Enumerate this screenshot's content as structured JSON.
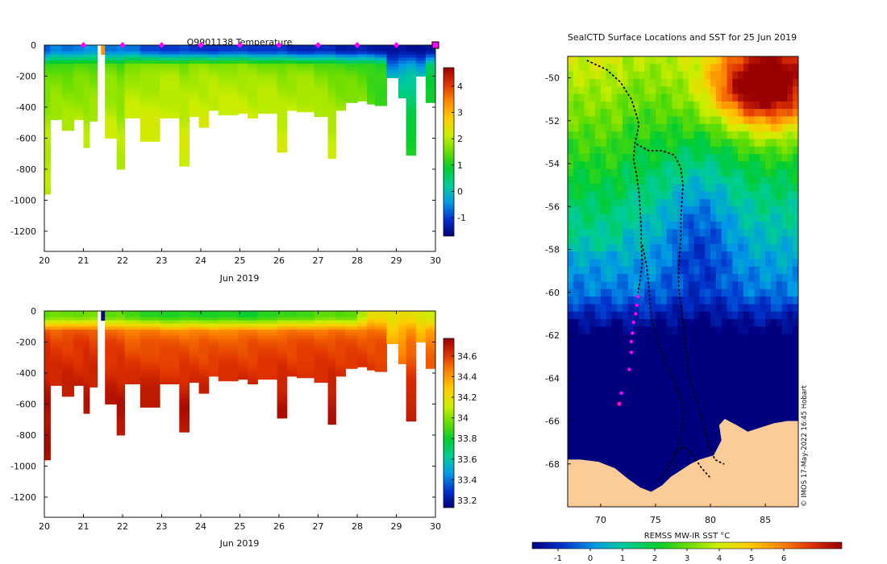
{
  "colors": {
    "land": "#fbcb98",
    "ocean_cold": "#00007f",
    "track": "#000000",
    "profile_marker": "#ff00ff",
    "temp_cmap": [
      "#00007f",
      "#0033cc",
      "#0099e6",
      "#00cc99",
      "#00cc33",
      "#66dd00",
      "#ccee00",
      "#ffcc00",
      "#ff8800",
      "#e03300",
      "#990000"
    ],
    "sal_cmap": [
      "#00007f",
      "#0033cc",
      "#0099e6",
      "#00cc99",
      "#00cc33",
      "#66dd00",
      "#ccee00",
      "#ffcc00",
      "#ff8800",
      "#e03300",
      "#990000"
    ],
    "sst_cmap": [
      "#00007f",
      "#0033cc",
      "#0099e6",
      "#00cc99",
      "#00cc33",
      "#66dd00",
      "#ccee00",
      "#ffcc00",
      "#ff8800",
      "#e03300",
      "#990000"
    ]
  },
  "chart_data": [
    {
      "type": "heatmap",
      "title": "Q9901138  Temperature",
      "xlabel": "Jun 2019",
      "ylabel": "",
      "xlim": [
        20,
        30
      ],
      "ylim": [
        -1330,
        0
      ],
      "xticks": [
        20,
        21,
        22,
        23,
        24,
        25,
        26,
        27,
        28,
        29,
        30
      ],
      "yticks": [
        0,
        -200,
        -400,
        -600,
        -800,
        -1000,
        -1200
      ],
      "colorbar": {
        "range": [
          -1.7,
          4.7
        ],
        "ticks": [
          -1,
          0,
          1,
          2,
          3,
          4
        ]
      },
      "profile_markers_x": [
        21,
        22,
        23,
        24,
        25,
        26,
        27,
        28,
        29,
        30
      ],
      "profiles": [
        {
          "x0": 20.0,
          "x1": 20.15,
          "depth": -960,
          "top": -0.8,
          "mix": 1.2,
          "deep": 2.0
        },
        {
          "x0": 20.15,
          "x1": 20.45,
          "depth": -480,
          "top": -0.6,
          "mix": 1.3,
          "deep": 2.1
        },
        {
          "x0": 20.45,
          "x1": 20.75,
          "depth": -550,
          "top": -0.7,
          "mix": 1.2,
          "deep": 2.1
        },
        {
          "x0": 20.75,
          "x1": 21.0,
          "depth": -480,
          "top": -0.5,
          "mix": 1.3,
          "deep": 2.1
        },
        {
          "x0": 21.0,
          "x1": 21.15,
          "depth": -660,
          "top": -0.4,
          "mix": 1.4,
          "deep": 2.0
        },
        {
          "x0": 21.15,
          "x1": 21.35,
          "depth": -490,
          "top": -0.5,
          "mix": 1.3,
          "deep": 2.1
        },
        {
          "x0": 21.45,
          "x1": 21.55,
          "depth": -60,
          "top": 3.3,
          "mix": 3.3,
          "deep": 3.3
        },
        {
          "x0": 21.55,
          "x1": 21.85,
          "depth": -600,
          "top": -0.6,
          "mix": 1.4,
          "deep": 2.2
        },
        {
          "x0": 21.85,
          "x1": 22.05,
          "depth": -800,
          "top": -0.6,
          "mix": 1.3,
          "deep": 2.0
        },
        {
          "x0": 22.05,
          "x1": 22.45,
          "depth": -470,
          "top": -0.7,
          "mix": 1.6,
          "deep": 2.3
        },
        {
          "x0": 22.45,
          "x1": 22.95,
          "depth": -620,
          "top": -0.9,
          "mix": 1.6,
          "deep": 2.3
        },
        {
          "x0": 22.95,
          "x1": 23.45,
          "depth": -470,
          "top": -1.0,
          "mix": 1.7,
          "deep": 2.3
        },
        {
          "x0": 23.45,
          "x1": 23.7,
          "depth": -780,
          "top": -1.0,
          "mix": 1.6,
          "deep": 2.2
        },
        {
          "x0": 23.7,
          "x1": 23.95,
          "depth": -460,
          "top": -1.1,
          "mix": 1.7,
          "deep": 2.3
        },
        {
          "x0": 23.95,
          "x1": 24.2,
          "depth": -530,
          "top": -1.0,
          "mix": 1.7,
          "deep": 2.3
        },
        {
          "x0": 24.2,
          "x1": 24.45,
          "depth": -420,
          "top": -1.1,
          "mix": 1.7,
          "deep": 2.3
        },
        {
          "x0": 24.45,
          "x1": 24.95,
          "depth": -450,
          "top": -1.1,
          "mix": 1.7,
          "deep": 2.3
        },
        {
          "x0": 24.95,
          "x1": 25.2,
          "depth": -440,
          "top": -1.0,
          "mix": 1.7,
          "deep": 2.3
        },
        {
          "x0": 25.2,
          "x1": 25.45,
          "depth": -470,
          "top": -1.0,
          "mix": 1.6,
          "deep": 2.3
        },
        {
          "x0": 25.45,
          "x1": 25.95,
          "depth": -440,
          "top": -1.1,
          "mix": 1.6,
          "deep": 2.3
        },
        {
          "x0": 25.95,
          "x1": 26.2,
          "depth": -690,
          "top": -1.1,
          "mix": 1.5,
          "deep": 2.2
        },
        {
          "x0": 26.2,
          "x1": 26.45,
          "depth": -420,
          "top": -1.2,
          "mix": 1.5,
          "deep": 2.3
        },
        {
          "x0": 26.45,
          "x1": 26.9,
          "depth": -430,
          "top": -1.2,
          "mix": 1.5,
          "deep": 2.3
        },
        {
          "x0": 26.9,
          "x1": 27.25,
          "depth": -460,
          "top": -1.2,
          "mix": 1.4,
          "deep": 2.2
        },
        {
          "x0": 27.25,
          "x1": 27.45,
          "depth": -730,
          "top": -1.2,
          "mix": 1.3,
          "deep": 2.1
        },
        {
          "x0": 27.45,
          "x1": 27.7,
          "depth": -420,
          "top": -1.3,
          "mix": 1.2,
          "deep": 2.1
        },
        {
          "x0": 27.7,
          "x1": 28.0,
          "depth": -370,
          "top": -1.3,
          "mix": 1.2,
          "deep": 2.0
        },
        {
          "x0": 28.0,
          "x1": 28.25,
          "depth": -360,
          "top": -1.3,
          "mix": 1.2,
          "deep": 1.9
        },
        {
          "x0": 28.25,
          "x1": 28.45,
          "depth": -380,
          "top": -1.4,
          "mix": 1.1,
          "deep": 1.5
        },
        {
          "x0": 28.45,
          "x1": 28.75,
          "depth": -390,
          "top": -1.4,
          "mix": 1.0,
          "deep": 1.4
        },
        {
          "x0": 28.75,
          "x1": 29.05,
          "depth": -210,
          "top": -1.5,
          "mix": -0.6,
          "deep": 0.9
        },
        {
          "x0": 29.05,
          "x1": 29.25,
          "depth": -340,
          "top": -1.5,
          "mix": -0.4,
          "deep": 1.0
        },
        {
          "x0": 29.25,
          "x1": 29.5,
          "depth": -710,
          "top": -1.5,
          "mix": -0.3,
          "deep": 1.0
        },
        {
          "x0": 29.5,
          "x1": 29.75,
          "depth": -200,
          "top": -1.5,
          "mix": -0.5,
          "deep": 0.8
        },
        {
          "x0": 29.75,
          "x1": 30.05,
          "depth": -370,
          "top": -1.5,
          "mix": 0.6,
          "deep": 1.1
        }
      ]
    },
    {
      "type": "heatmap",
      "title": "",
      "xlabel": "Jun 2019",
      "ylabel": "",
      "xlim": [
        20,
        30
      ],
      "ylim": [
        -1330,
        0
      ],
      "xticks": [
        20,
        21,
        22,
        23,
        24,
        25,
        26,
        27,
        28,
        29,
        30
      ],
      "yticks": [
        0,
        -200,
        -400,
        -600,
        -800,
        -1000,
        -1200
      ],
      "colorbar": {
        "range": [
          33.13,
          34.77
        ],
        "ticks": [
          33.2,
          33.4,
          33.6,
          33.8,
          34,
          34.2,
          34.4,
          34.6
        ]
      },
      "profiles": [
        {
          "x0": 20.0,
          "x1": 20.15,
          "depth": -960,
          "top": 33.95,
          "mix": 34.55,
          "deep": 34.72
        },
        {
          "x0": 20.15,
          "x1": 20.45,
          "depth": -480,
          "top": 33.95,
          "mix": 34.52,
          "deep": 34.7
        },
        {
          "x0": 20.45,
          "x1": 20.75,
          "depth": -550,
          "top": 33.95,
          "mix": 34.52,
          "deep": 34.71
        },
        {
          "x0": 20.75,
          "x1": 21.0,
          "depth": -480,
          "top": 33.96,
          "mix": 34.53,
          "deep": 34.7
        },
        {
          "x0": 21.0,
          "x1": 21.15,
          "depth": -660,
          "top": 33.97,
          "mix": 34.55,
          "deep": 34.71
        },
        {
          "x0": 21.15,
          "x1": 21.35,
          "depth": -490,
          "top": 33.96,
          "mix": 34.53,
          "deep": 34.7
        },
        {
          "x0": 21.45,
          "x1": 21.55,
          "depth": -60,
          "top": 33.15,
          "mix": 33.15,
          "deep": 33.15
        },
        {
          "x0": 21.55,
          "x1": 21.85,
          "depth": -600,
          "top": 33.95,
          "mix": 34.5,
          "deep": 34.71
        },
        {
          "x0": 21.85,
          "x1": 22.05,
          "depth": -800,
          "top": 33.95,
          "mix": 34.5,
          "deep": 34.71
        },
        {
          "x0": 22.05,
          "x1": 22.45,
          "depth": -470,
          "top": 33.88,
          "mix": 34.45,
          "deep": 34.7
        },
        {
          "x0": 22.45,
          "x1": 22.95,
          "depth": -620,
          "top": 33.86,
          "mix": 34.45,
          "deep": 34.71
        },
        {
          "x0": 22.95,
          "x1": 23.45,
          "depth": -470,
          "top": 33.84,
          "mix": 34.44,
          "deep": 34.7
        },
        {
          "x0": 23.45,
          "x1": 23.7,
          "depth": -780,
          "top": 33.84,
          "mix": 34.44,
          "deep": 34.71
        },
        {
          "x0": 23.7,
          "x1": 23.95,
          "depth": -460,
          "top": 33.83,
          "mix": 34.44,
          "deep": 34.7
        },
        {
          "x0": 23.95,
          "x1": 24.2,
          "depth": -530,
          "top": 33.84,
          "mix": 34.44,
          "deep": 34.7
        },
        {
          "x0": 24.2,
          "x1": 24.45,
          "depth": -420,
          "top": 33.83,
          "mix": 34.44,
          "deep": 34.7
        },
        {
          "x0": 24.45,
          "x1": 24.95,
          "depth": -450,
          "top": 33.82,
          "mix": 34.45,
          "deep": 34.7
        },
        {
          "x0": 24.95,
          "x1": 25.2,
          "depth": -440,
          "top": 33.8,
          "mix": 34.45,
          "deep": 34.7
        },
        {
          "x0": 25.2,
          "x1": 25.45,
          "depth": -470,
          "top": 33.82,
          "mix": 34.46,
          "deep": 34.7
        },
        {
          "x0": 25.45,
          "x1": 25.95,
          "depth": -440,
          "top": 33.84,
          "mix": 34.46,
          "deep": 34.7
        },
        {
          "x0": 25.95,
          "x1": 26.2,
          "depth": -690,
          "top": 33.86,
          "mix": 34.47,
          "deep": 34.71
        },
        {
          "x0": 26.2,
          "x1": 26.45,
          "depth": -420,
          "top": 33.88,
          "mix": 34.47,
          "deep": 34.7
        },
        {
          "x0": 26.45,
          "x1": 26.9,
          "depth": -430,
          "top": 33.9,
          "mix": 34.48,
          "deep": 34.7
        },
        {
          "x0": 26.9,
          "x1": 27.25,
          "depth": -460,
          "top": 33.92,
          "mix": 34.48,
          "deep": 34.7
        },
        {
          "x0": 27.25,
          "x1": 27.45,
          "depth": -730,
          "top": 33.93,
          "mix": 34.48,
          "deep": 34.71
        },
        {
          "x0": 27.45,
          "x1": 27.7,
          "depth": -420,
          "top": 33.93,
          "mix": 34.48,
          "deep": 34.7
        },
        {
          "x0": 27.7,
          "x1": 28.0,
          "depth": -370,
          "top": 33.94,
          "mix": 34.48,
          "deep": 34.69
        },
        {
          "x0": 28.0,
          "x1": 28.25,
          "depth": -360,
          "top": 34.05,
          "mix": 34.48,
          "deep": 34.69
        },
        {
          "x0": 28.25,
          "x1": 28.45,
          "depth": -380,
          "top": 34.2,
          "mix": 34.48,
          "deep": 34.68
        },
        {
          "x0": 28.45,
          "x1": 28.75,
          "depth": -390,
          "top": 34.22,
          "mix": 34.47,
          "deep": 34.68
        },
        {
          "x0": 28.75,
          "x1": 29.05,
          "depth": -210,
          "top": 34.18,
          "mix": 34.3,
          "deep": 34.45
        },
        {
          "x0": 29.05,
          "x1": 29.25,
          "depth": -340,
          "top": 34.2,
          "mix": 34.35,
          "deep": 34.55
        },
        {
          "x0": 29.25,
          "x1": 29.5,
          "depth": -710,
          "top": 34.2,
          "mix": 34.4,
          "deep": 34.68
        },
        {
          "x0": 29.5,
          "x1": 29.75,
          "depth": -200,
          "top": 34.18,
          "mix": 34.3,
          "deep": 34.45
        },
        {
          "x0": 29.75,
          "x1": 30.05,
          "depth": -370,
          "top": 34.1,
          "mix": 34.4,
          "deep": 34.6
        }
      ]
    },
    {
      "type": "heatmap",
      "title": "SealCTD Surface Locations and SST for 25 Jun 2019",
      "xlabel": "",
      "ylabel": "",
      "xlim": [
        67,
        88
      ],
      "ylim": [
        -70,
        -49
      ],
      "xticks": [
        70,
        75,
        80,
        85
      ],
      "yticks": [
        -50,
        -52,
        -54,
        -56,
        -58,
        -60,
        -62,
        -64,
        -66,
        -68
      ],
      "colorbar": {
        "label": "REMSS MW-IR SST °C",
        "range": [
          -1.8,
          7.8
        ],
        "ticks": [
          -1,
          0,
          1,
          2,
          3,
          4,
          5,
          6
        ]
      },
      "watermark": "© IMOS 17-May-2022 16:45 Hobart",
      "magenta_profile_points": [
        {
          "lon": 73.4,
          "lat": -60.2
        },
        {
          "lon": 73.3,
          "lat": -60.6
        },
        {
          "lon": 73.2,
          "lat": -61.0
        },
        {
          "lon": 73.0,
          "lat": -61.4
        },
        {
          "lon": 72.9,
          "lat": -61.9
        },
        {
          "lon": 72.8,
          "lat": -62.3
        },
        {
          "lon": 72.8,
          "lat": -62.8
        },
        {
          "lon": 72.6,
          "lat": -63.6
        },
        {
          "lon": 71.9,
          "lat": -64.7
        },
        {
          "lon": 71.7,
          "lat": -65.2
        }
      ],
      "track_lines": [
        [
          [
            68.8,
            -49.2
          ],
          [
            70.5,
            -49.6
          ],
          [
            71.8,
            -50.2
          ],
          [
            72.8,
            -51.0
          ],
          [
            73.3,
            -51.8
          ],
          [
            73.5,
            -52.2
          ],
          [
            73.1,
            -53.1
          ],
          [
            73.0,
            -53.8
          ],
          [
            73.3,
            -54.6
          ],
          [
            73.5,
            -55.4
          ],
          [
            73.6,
            -56.2
          ],
          [
            73.7,
            -57.0
          ],
          [
            73.7,
            -57.8
          ],
          [
            73.8,
            -58.6
          ],
          [
            73.6,
            -59.4
          ],
          [
            73.4,
            -60.0
          ]
        ],
        [
          [
            73.3,
            -53.1
          ],
          [
            74.4,
            -53.4
          ],
          [
            75.6,
            -53.4
          ],
          [
            76.7,
            -53.6
          ],
          [
            77.3,
            -54.2
          ],
          [
            77.5,
            -55.0
          ],
          [
            77.4,
            -55.8
          ],
          [
            77.3,
            -56.6
          ],
          [
            77.3,
            -57.4
          ],
          [
            77.2,
            -58.2
          ],
          [
            77.1,
            -59.0
          ],
          [
            77.1,
            -59.8
          ],
          [
            77.3,
            -60.6
          ],
          [
            77.5,
            -61.4
          ],
          [
            77.7,
            -62.3
          ],
          [
            77.9,
            -63.2
          ],
          [
            78.1,
            -64.0
          ],
          [
            78.6,
            -64.8
          ],
          [
            79.1,
            -65.6
          ],
          [
            79.5,
            -66.4
          ],
          [
            79.9,
            -67.2
          ],
          [
            80.4,
            -67.8
          ],
          [
            81.2,
            -68.0
          ]
        ],
        [
          [
            73.8,
            -57.8
          ],
          [
            74.2,
            -58.8
          ],
          [
            74.4,
            -59.8
          ],
          [
            74.5,
            -60.6
          ],
          [
            74.7,
            -61.4
          ],
          [
            75.3,
            -62.4
          ],
          [
            75.9,
            -63.3
          ],
          [
            76.6,
            -64.0
          ],
          [
            77.2,
            -64.8
          ],
          [
            77.6,
            -65.6
          ],
          [
            77.4,
            -66.4
          ],
          [
            77.1,
            -67.2
          ],
          [
            76.6,
            -67.8
          ],
          [
            75.9,
            -68.4
          ],
          [
            75.2,
            -68.8
          ]
        ],
        [
          [
            76.7,
            -67.5
          ],
          [
            77.6,
            -67.2
          ],
          [
            78.4,
            -67.6
          ],
          [
            79.2,
            -68.2
          ],
          [
            79.9,
            -68.6
          ]
        ]
      ]
    }
  ]
}
